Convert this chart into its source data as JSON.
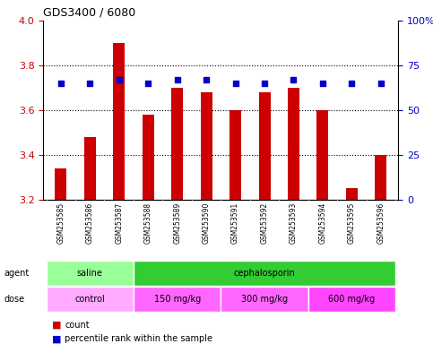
{
  "title": "GDS3400 / 6080",
  "samples": [
    "GSM253585",
    "GSM253586",
    "GSM253587",
    "GSM253588",
    "GSM253589",
    "GSM253590",
    "GSM253591",
    "GSM253592",
    "GSM253593",
    "GSM253594",
    "GSM253595",
    "GSM253596"
  ],
  "bar_values": [
    3.34,
    3.48,
    3.9,
    3.58,
    3.7,
    3.68,
    3.6,
    3.68,
    3.7,
    3.6,
    3.25,
    3.4
  ],
  "dot_values": [
    65,
    65,
    67,
    65,
    67,
    67,
    65,
    65,
    67,
    65,
    65,
    65
  ],
  "ylim": [
    3.2,
    4.0
  ],
  "yticks": [
    3.2,
    3.4,
    3.6,
    3.8,
    4.0
  ],
  "right_yticks": [
    0,
    25,
    50,
    75,
    100
  ],
  "right_ylim": [
    0,
    100
  ],
  "bar_color": "#cc0000",
  "dot_color": "#0000cc",
  "bar_baseline": 3.2,
  "agent_groups": [
    {
      "label": "saline",
      "start": 0,
      "end": 3,
      "color": "#99ff99"
    },
    {
      "label": "cephalosporin",
      "start": 3,
      "end": 12,
      "color": "#33cc33"
    }
  ],
  "dose_groups": [
    {
      "label": "control",
      "start": 0,
      "end": 3,
      "color": "#ffaaff"
    },
    {
      "label": "150 mg/kg",
      "start": 3,
      "end": 6,
      "color": "#ff66ff"
    },
    {
      "label": "300 mg/kg",
      "start": 6,
      "end": 9,
      "color": "#ff66ff"
    },
    {
      "label": "600 mg/kg",
      "start": 9,
      "end": 12,
      "color": "#ff44ff"
    }
  ],
  "legend_items": [
    {
      "label": "count",
      "color": "#cc0000",
      "marker": "s"
    },
    {
      "label": "percentile rank within the sample",
      "color": "#0000cc",
      "marker": "s"
    }
  ],
  "bg_color": "#ffffff",
  "grid_color": "#000000",
  "tick_label_color_left": "#cc0000",
  "tick_label_color_right": "#0000cc"
}
